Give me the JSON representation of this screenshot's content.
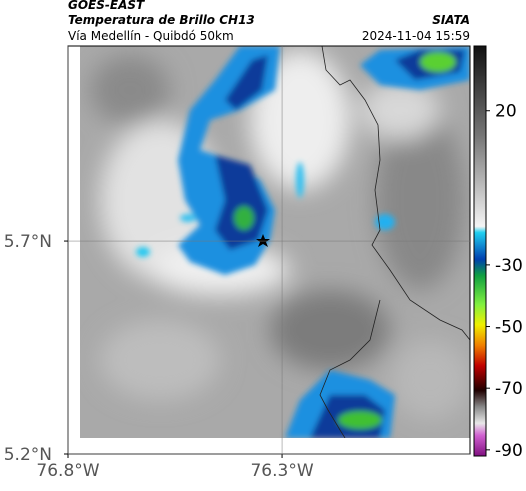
{
  "header": {
    "source": "GOES-EAST",
    "title": "Temperatura de Brillo CH13",
    "subtitle": "Vía Medellín - Quibdó 50km",
    "org": "SIATA",
    "timestamp": "2024-11-04 15:59"
  },
  "map": {
    "xlim": [
      -76.8,
      -75.861
    ],
    "ylim": [
      5.2,
      6.158
    ],
    "xticks": [
      {
        "value": -76.8,
        "label": "76.8°W"
      },
      {
        "value": -76.3,
        "label": "76.3°W"
      }
    ],
    "yticks": [
      {
        "value": 5.7,
        "label": "5.7°N"
      },
      {
        "value": 5.2,
        "label": "5.2°N"
      }
    ]
  },
  "colorbar": {
    "lim": [
      41,
      -92
    ],
    "ticks": [
      20,
      -30,
      -50,
      -70,
      -90
    ]
  }
}
